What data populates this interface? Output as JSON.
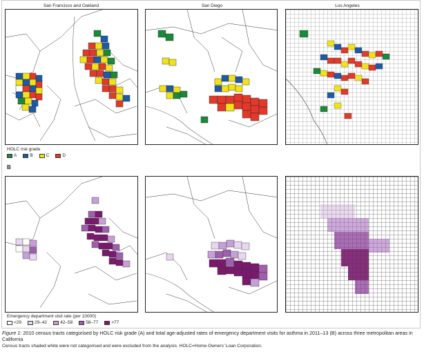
{
  "panels_a": {
    "cities": [
      "San Francisco and Oakland",
      "San Diego",
      "Los Angeles"
    ]
  },
  "legend_a": {
    "title": "HOLC risk grade",
    "items": [
      {
        "label": "A",
        "color": "#1a8a3a"
      },
      {
        "label": "B",
        "color": "#1f5aa6"
      },
      {
        "label": "C",
        "color": "#f2e21b"
      },
      {
        "label": "D",
        "color": "#e23a2a"
      }
    ]
  },
  "panel_b_letter": "B",
  "legend_b": {
    "title": "Emergency department visit rate (per 10000)",
    "items": [
      {
        "label": "<29",
        "color": "#ffffff"
      },
      {
        "label": "29–42",
        "color": "#e7d6ee"
      },
      {
        "label": "42–58",
        "color": "#c79fd8"
      },
      {
        "label": "58–77",
        "color": "#a05fae"
      },
      {
        "label": ">77",
        "color": "#7a1a6e"
      }
    ]
  },
  "caption": {
    "figure_label": "Figure 1:",
    "text": " 2010 census tracts categorised by HOLC risk grade (A) and total age-adjusted rates of emergency department visits for asthma in 2011–13 (B) across three metropolitan areas in California",
    "note": "Census tracts shaded white were not categorised and were excluded from the analysis. HOLC=Home Owners’ Loan Corporation."
  }
}
